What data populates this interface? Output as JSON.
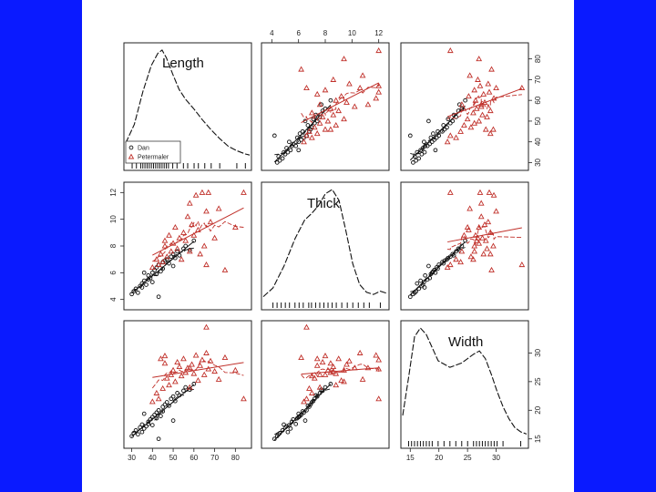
{
  "colors": {
    "background": "#0a1aff",
    "slide": "#ffffff",
    "dan": "#111111",
    "petermaler": "#c0302a"
  },
  "chart_data": {
    "type": "scatter",
    "title": "",
    "variables": [
      {
        "name": "Length",
        "range": [
          28,
          86
        ],
        "ticks": [
          30,
          40,
          50,
          60,
          70,
          80
        ],
        "tick_labels": [
          "30",
          "40",
          "50",
          "60",
          "70",
          "80"
        ]
      },
      {
        "name": "Thick",
        "range": [
          3.5,
          12.5
        ],
        "ticks": [
          4,
          6,
          8,
          10,
          12
        ],
        "tick_labels": [
          "4",
          "6",
          "8",
          "10",
          "12"
        ]
      },
      {
        "name": "Width",
        "range": [
          14,
          35
        ],
        "ticks": [
          15,
          20,
          25,
          30
        ],
        "tick_labels": [
          "15",
          "20",
          "25",
          "30"
        ]
      }
    ],
    "legend": {
      "entries": [
        "Dan",
        "Petermaler"
      ],
      "placement": "bottom-left of Length panel"
    },
    "groups": [
      {
        "name": "Dan",
        "marker": "circle",
        "color": "#111111",
        "Length": [
          30,
          31,
          32,
          33,
          34,
          35,
          35,
          36,
          37,
          38,
          38,
          39,
          40,
          40,
          41,
          42,
          42,
          43,
          44,
          45,
          45,
          46,
          47,
          48,
          49,
          50,
          51,
          52,
          53,
          55,
          56,
          58,
          60,
          36,
          43,
          50
        ],
        "Thick": [
          4.4,
          4.6,
          4.8,
          4.5,
          5.0,
          5.2,
          4.9,
          5.4,
          5.1,
          5.5,
          5.8,
          5.6,
          6.0,
          5.3,
          6.2,
          6.4,
          5.9,
          6.6,
          6.1,
          6.8,
          6.3,
          6.9,
          7.0,
          6.7,
          7.2,
          7.4,
          7.1,
          7.6,
          7.3,
          7.8,
          8.0,
          7.7,
          8.4,
          6.0,
          4.2,
          6.5
        ],
        "Width": [
          15.5,
          16,
          16.5,
          15.8,
          17,
          16.2,
          17.5,
          16.8,
          17.2,
          18,
          17.6,
          18.4,
          18.8,
          17.4,
          19.2,
          19.6,
          18.6,
          20,
          19,
          20.6,
          19.8,
          21,
          21.4,
          20.8,
          22,
          22.4,
          21.6,
          23,
          22.6,
          23.4,
          24,
          23.6,
          24.6,
          19.4,
          15,
          18.2
        ]
      },
      {
        "name": "Petermaler",
        "marker": "triangle",
        "color": "#c0302a",
        "Length": [
          40,
          42,
          43,
          44,
          45,
          46,
          47,
          48,
          49,
          50,
          51,
          52,
          53,
          54,
          55,
          56,
          57,
          58,
          59,
          60,
          61,
          62,
          63,
          64,
          65,
          66,
          67,
          68,
          70,
          72,
          75,
          80,
          84,
          46,
          58,
          66
        ],
        "Thick": [
          6.4,
          7.0,
          6.6,
          7.4,
          6.8,
          8.0,
          7.2,
          8.8,
          7.6,
          8.2,
          9.4,
          7.8,
          8.6,
          7.0,
          9.0,
          8.4,
          10.2,
          7.6,
          9.6,
          8.8,
          11.8,
          9.2,
          7.4,
          12.0,
          8.0,
          10.6,
          12.0,
          9.8,
          8.6,
          10.8,
          6.2,
          9.4,
          12.0,
          8.4,
          11.2,
          6.6
        ],
        "Width": [
          21.5,
          23.0,
          22.0,
          29.0,
          23.8,
          29.5,
          25.6,
          24.4,
          26.2,
          27.0,
          25.0,
          28.4,
          27.6,
          26.0,
          29.0,
          26.6,
          27.4,
          24.0,
          28.0,
          26.4,
          29.6,
          25.2,
          27.8,
          28.8,
          26.2,
          30.0,
          27.2,
          28.6,
          26.8,
          25.4,
          29.2,
          27.0,
          22.0,
          28.2,
          27.4,
          34.5
        ]
      }
    ],
    "density": [
      {
        "variable": "Length",
        "x": [
          28,
          32,
          36,
          40,
          43,
          45,
          47,
          50,
          53,
          56,
          60,
          64,
          68,
          72,
          76,
          80,
          84,
          86
        ],
        "y": [
          0.15,
          0.32,
          0.62,
          0.86,
          0.97,
          1.0,
          0.93,
          0.78,
          0.64,
          0.55,
          0.46,
          0.36,
          0.27,
          0.19,
          0.12,
          0.08,
          0.05,
          0.04
        ]
      },
      {
        "variable": "Thick",
        "x": [
          3.5,
          4.2,
          5.0,
          5.8,
          6.5,
          7.0,
          7.5,
          8.0,
          8.5,
          9.0,
          9.5,
          10.0,
          10.5,
          11.0,
          11.5,
          12.0,
          12.5
        ],
        "y": [
          0.02,
          0.1,
          0.3,
          0.55,
          0.72,
          0.78,
          0.85,
          0.96,
          1.0,
          0.9,
          0.62,
          0.32,
          0.13,
          0.06,
          0.04,
          0.07,
          0.05
        ]
      },
      {
        "variable": "Width",
        "x": [
          14,
          15,
          16,
          17,
          18,
          19,
          20,
          22,
          24,
          26,
          27,
          28,
          29,
          30,
          31,
          32,
          33,
          34,
          35
        ],
        "y": [
          0.2,
          0.55,
          0.92,
          1.0,
          0.94,
          0.82,
          0.7,
          0.64,
          0.68,
          0.76,
          0.79,
          0.72,
          0.58,
          0.42,
          0.28,
          0.17,
          0.09,
          0.05,
          0.03
        ]
      }
    ],
    "rug": {
      "Length": [
        31,
        33,
        35,
        36,
        37,
        38,
        39,
        40,
        41,
        42,
        43,
        44,
        45,
        46,
        47,
        48,
        50,
        52,
        55,
        57,
        60,
        62,
        65,
        68,
        72,
        80,
        84
      ],
      "Thick": [
        4.2,
        4.5,
        4.8,
        5.1,
        5.4,
        5.8,
        6.1,
        6.4,
        6.8,
        7.0,
        7.3,
        7.6,
        7.9,
        8.2,
        8.5,
        8.8,
        9.2,
        9.6,
        10.0,
        10.4,
        10.8,
        11.2,
        12.0
      ],
      "Width": [
        15,
        15.5,
        16,
        16.5,
        17,
        17.5,
        18,
        18.5,
        19,
        20,
        21,
        22,
        23,
        24,
        25,
        26,
        26.5,
        27,
        27.5,
        28,
        28.5,
        29,
        29.5,
        30,
        31,
        34
      ]
    }
  }
}
